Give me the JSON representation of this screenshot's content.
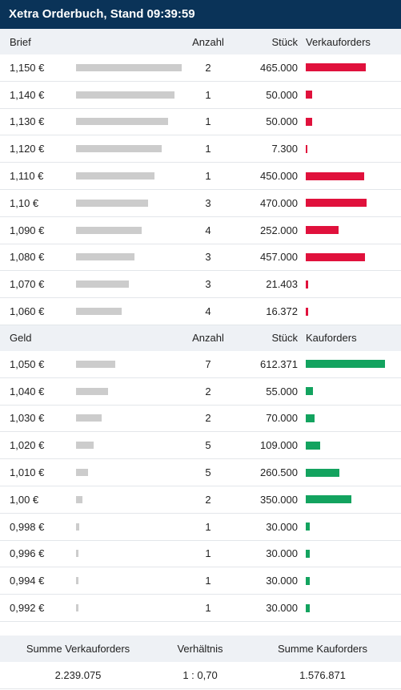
{
  "title": "Xetra Orderbuch, Stand 09:39:59",
  "sell_header": {
    "price": "Brief",
    "count": "Anzahl",
    "qty": "Stück",
    "orders": "Verkauforders"
  },
  "buy_header": {
    "price": "Geld",
    "count": "Anzahl",
    "qty": "Stück",
    "orders": "Kauforders"
  },
  "colors": {
    "sell": "#e0113c",
    "buy": "#13a35f",
    "price_bar": "#cccccc",
    "title_bg": "#0a3358"
  },
  "max_qty": 612371,
  "sell_rows": [
    {
      "price": "1,150 €",
      "count": "2",
      "qty": "465.000",
      "qty_num": 465000,
      "depth": 1.0
    },
    {
      "price": "1,140 €",
      "count": "1",
      "qty": "50.000",
      "qty_num": 50000,
      "depth": 0.93
    },
    {
      "price": "1,130 €",
      "count": "1",
      "qty": "50.000",
      "qty_num": 50000,
      "depth": 0.87
    },
    {
      "price": "1,120 €",
      "count": "1",
      "qty": "7.300",
      "qty_num": 7300,
      "depth": 0.81
    },
    {
      "price": "1,110 €",
      "count": "1",
      "qty": "450.000",
      "qty_num": 450000,
      "depth": 0.74
    },
    {
      "price": "1,10 €",
      "count": "3",
      "qty": "470.000",
      "qty_num": 470000,
      "depth": 0.68
    },
    {
      "price": "1,090 €",
      "count": "4",
      "qty": "252.000",
      "qty_num": 252000,
      "depth": 0.62
    },
    {
      "price": "1,080 €",
      "count": "3",
      "qty": "457.000",
      "qty_num": 457000,
      "depth": 0.55
    },
    {
      "price": "1,070 €",
      "count": "3",
      "qty": "21.403",
      "qty_num": 21403,
      "depth": 0.5
    },
    {
      "price": "1,060 €",
      "count": "4",
      "qty": "16.372",
      "qty_num": 16372,
      "depth": 0.43
    }
  ],
  "buy_rows": [
    {
      "price": "1,050 €",
      "count": "7",
      "qty": "612.371",
      "qty_num": 612371,
      "depth": 0.37
    },
    {
      "price": "1,040 €",
      "count": "2",
      "qty": "55.000",
      "qty_num": 55000,
      "depth": 0.3
    },
    {
      "price": "1,030 €",
      "count": "2",
      "qty": "70.000",
      "qty_num": 70000,
      "depth": 0.24
    },
    {
      "price": "1,020 €",
      "count": "5",
      "qty": "109.000",
      "qty_num": 109000,
      "depth": 0.17
    },
    {
      "price": "1,010 €",
      "count": "5",
      "qty": "260.500",
      "qty_num": 260500,
      "depth": 0.11
    },
    {
      "price": "1,00 €",
      "count": "2",
      "qty": "350.000",
      "qty_num": 350000,
      "depth": 0.06
    },
    {
      "price": "0,998 €",
      "count": "1",
      "qty": "30.000",
      "qty_num": 30000,
      "depth": 0.03
    },
    {
      "price": "0,996 €",
      "count": "1",
      "qty": "30.000",
      "qty_num": 30000,
      "depth": 0.02
    },
    {
      "price": "0,994 €",
      "count": "1",
      "qty": "30.000",
      "qty_num": 30000,
      "depth": 0.01
    },
    {
      "price": "0,992 €",
      "count": "1",
      "qty": "30.000",
      "qty_num": 30000,
      "depth": 0.01
    }
  ],
  "summary": {
    "sell_label": "Summe Verkauforders",
    "ratio_label": "Verhältnis",
    "buy_label": "Summe Kauforders",
    "sell_total": "2.239.075",
    "ratio": "1 : 0,70",
    "buy_total": "1.576.871"
  }
}
